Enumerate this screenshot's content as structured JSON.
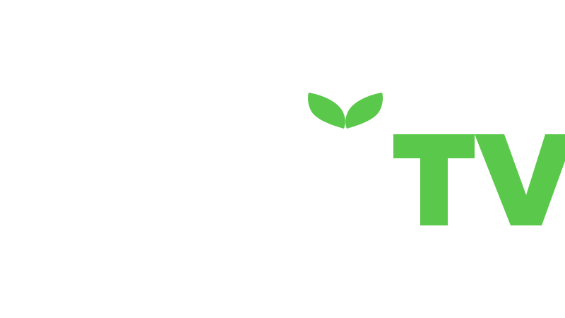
{
  "logo": {
    "wordmark_hidden": "",
    "tv_text": "TV",
    "colors": {
      "background": "#ffffff",
      "accent": "#5ac84a",
      "hidden_wordmark": "#ffffff"
    }
  }
}
